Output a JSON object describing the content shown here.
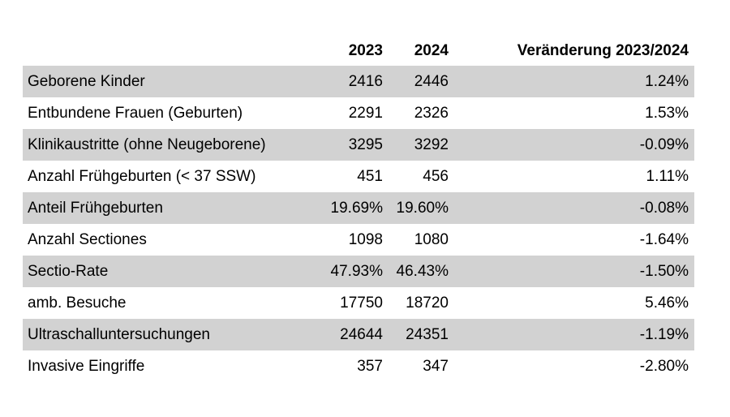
{
  "chart_data": {
    "type": "table",
    "header": {
      "label": "",
      "y2023": "2023",
      "y2024": "2024",
      "change": "Veränderung 2023/2024"
    },
    "columns": [
      "",
      "2023",
      "2024",
      "Veränderung 2023/2024"
    ],
    "rows": [
      {
        "label": "Geborene Kinder",
        "y2023": "2416",
        "y2024": "2446",
        "change": "1.24%"
      },
      {
        "label": "Entbundene Frauen (Geburten)",
        "y2023": "2291",
        "y2024": "2326",
        "change": "1.53%"
      },
      {
        "label": "Klinikaustritte (ohne Neugeborene)",
        "y2023": "3295",
        "y2024": "3292",
        "change": "-0.09%"
      },
      {
        "label": "Anzahl Frühgeburten (< 37 SSW)",
        "y2023": "451",
        "y2024": "456",
        "change": "1.11%"
      },
      {
        "label": "Anteil Frühgeburten",
        "y2023": "19.69%",
        "y2024": "19.60%",
        "change": "-0.08%"
      },
      {
        "label": "Anzahl Sectiones",
        "y2023": "1098",
        "y2024": "1080",
        "change": "-1.64%"
      },
      {
        "label": "Sectio-Rate",
        "y2023": "47.93%",
        "y2024": "46.43%",
        "change": "-1.50%"
      },
      {
        "label": "amb. Besuche",
        "y2023": "17750",
        "y2024": "18720",
        "change": "5.46%"
      },
      {
        "label": "Ultraschalluntersuchungen",
        "y2023": "24644",
        "y2024": "24351",
        "change": "-1.19%"
      },
      {
        "label": "Invasive Eingriffe",
        "y2023": "357",
        "y2024": "347",
        "change": "-2.80%"
      }
    ],
    "layout": {
      "shaded_rows": "odd (1st, 3rd, 5th, 7th, 9th)",
      "alignment": "labels left, values right"
    }
  },
  "colors": {
    "shaded_row": "#d2d2d2",
    "text": "#000000",
    "background": "#ffffff"
  }
}
